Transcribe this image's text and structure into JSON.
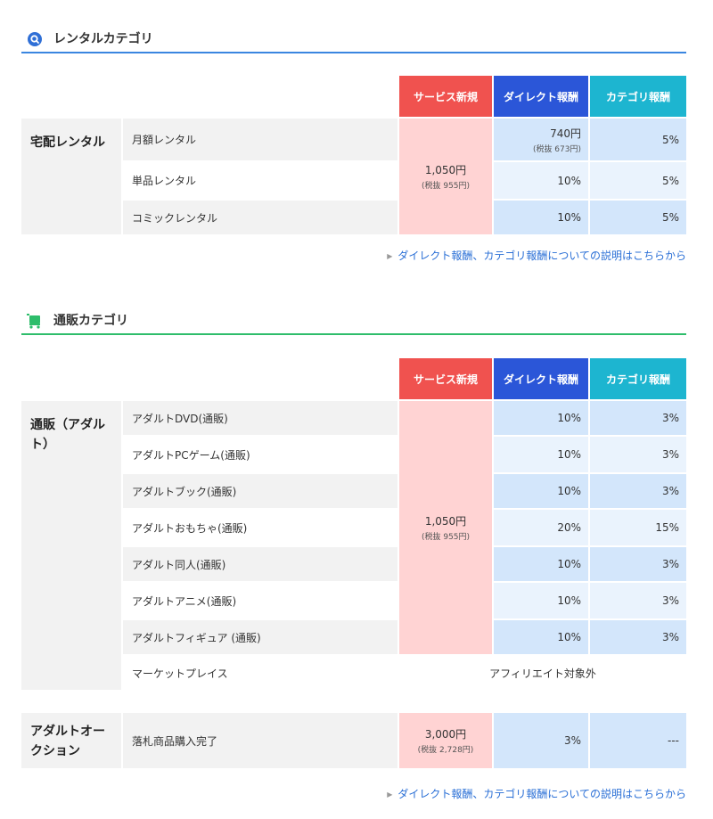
{
  "rental": {
    "title": "レンタルカテゴリ",
    "icon": "rental-search-icon",
    "headers": {
      "new": "サービス新規",
      "direct": "ダイレクト報酬",
      "category": "カテゴリ報酬"
    },
    "group": "宅配レンタル",
    "price": "1,050円",
    "price_sub": "(税抜 955円)",
    "rows": [
      {
        "name": "月額レンタル",
        "direct": "740円",
        "direct_sub": "(税抜 673円)",
        "category": "5%"
      },
      {
        "name": "単品レンタル",
        "direct": "10%",
        "category": "5%"
      },
      {
        "name": "コミックレンタル",
        "direct": "10%",
        "category": "5%"
      }
    ],
    "link": "ダイレクト報酬、カテゴリ報酬についての説明はこちらから"
  },
  "mailorder": {
    "title": "通販カテゴリ",
    "icon": "shopping-cart-icon",
    "headers": {
      "new": "サービス新規",
      "direct": "ダイレクト報酬",
      "category": "カテゴリ報酬"
    },
    "group": "通販（アダルト）",
    "price": "1,050円",
    "price_sub": "(税抜 955円)",
    "rows": [
      {
        "name": "アダルトDVD(通販)",
        "direct": "10%",
        "category": "3%"
      },
      {
        "name": "アダルトPCゲーム(通販)",
        "direct": "10%",
        "category": "3%"
      },
      {
        "name": "アダルトブック(通販)",
        "direct": "10%",
        "category": "3%"
      },
      {
        "name": "アダルトおもちゃ(通販)",
        "direct": "20%",
        "category": "15%"
      },
      {
        "name": "アダルト同人(通販)",
        "direct": "10%",
        "category": "3%"
      },
      {
        "name": "アダルトアニメ(通販)",
        "direct": "10%",
        "category": "3%"
      },
      {
        "name": "アダルトフィギュア (通販)",
        "direct": "10%",
        "category": "3%"
      }
    ],
    "marketplace": {
      "name": "マーケットプレイス",
      "note": "アフィリエイト対象外"
    },
    "auction": {
      "group": "アダルトオークション",
      "name": "落札商品購入完了",
      "price": "3,000円",
      "price_sub": "(税抜 2,728円)",
      "direct": "3%",
      "category": "---"
    },
    "link": "ダイレクト報酬、カテゴリ報酬についての説明はこちらから"
  },
  "colors": {
    "new": "#f0524f",
    "direct": "#2b56d8",
    "category": "#1db5d0",
    "rental_line": "#3a86e0",
    "mail_line": "#2ebd6b"
  }
}
